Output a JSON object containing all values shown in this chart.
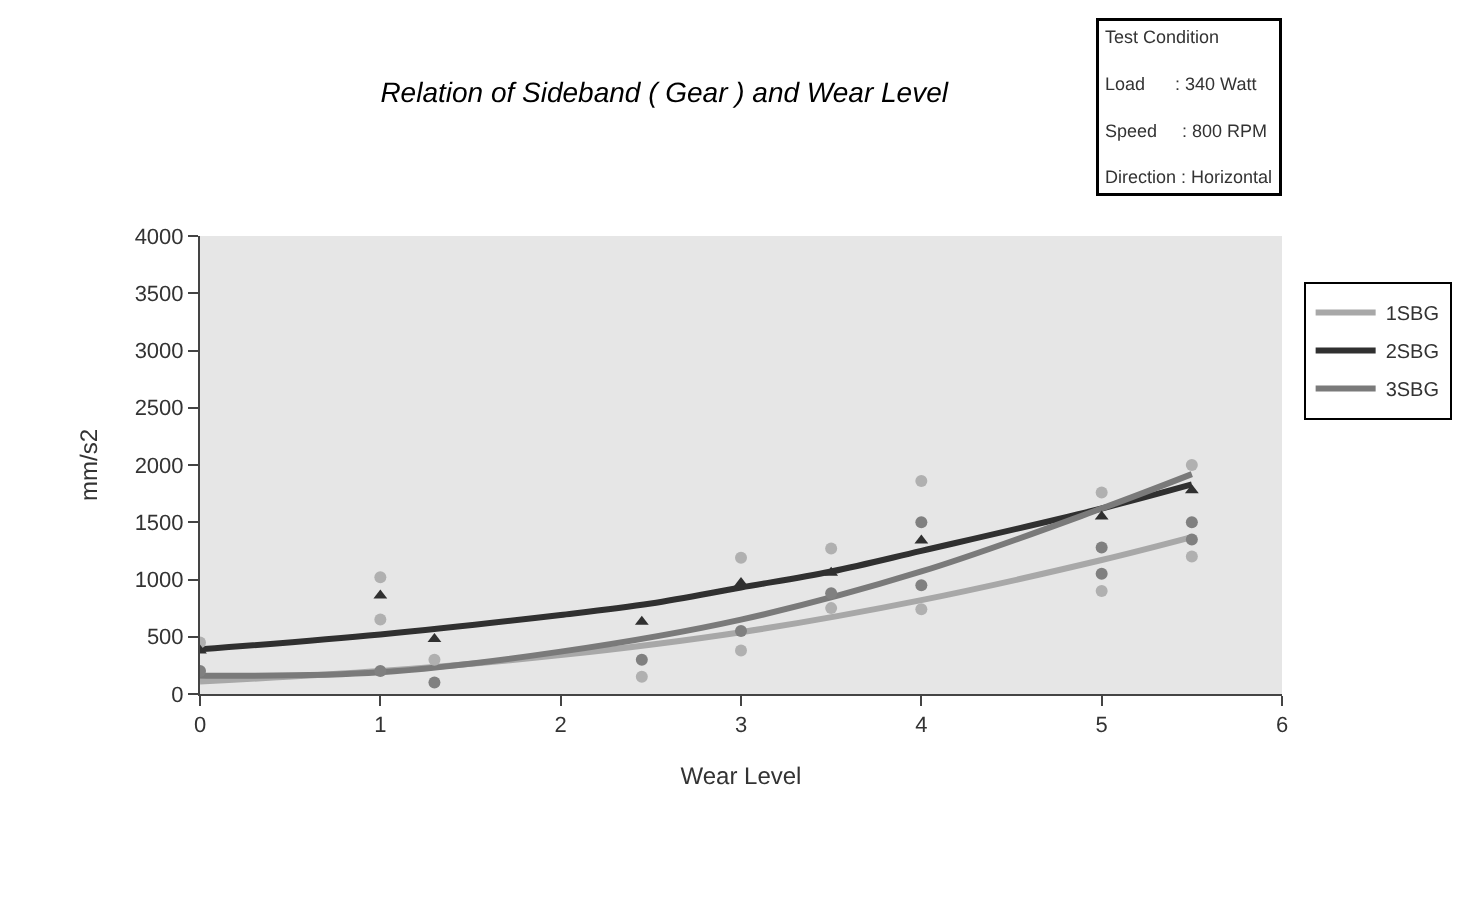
{
  "chart_data": {
    "type": "line",
    "title": "Relation of Sideband ( Gear ) and Wear Level",
    "xlabel": "Wear Level",
    "ylabel": "mm/s2",
    "annotations": [
      "Test Condition",
      "Load      : 340 Watt",
      "Speed     : 800 RPM",
      "Direction : Horizontal"
    ],
    "xlim": [
      0,
      6
    ],
    "xticks": [
      0,
      1,
      2,
      3,
      4,
      5,
      6
    ],
    "ylim": [
      0,
      4000
    ],
    "yticks": [
      0,
      500,
      1000,
      1500,
      2000,
      2500,
      3000,
      3500,
      4000
    ],
    "grid": false,
    "legend": "right",
    "series": [
      {
        "name": "1SBG",
        "color": "#a8a8a8",
        "marker": "none",
        "x": [
          0,
          1,
          2,
          3,
          4,
          5,
          5.5
        ],
        "values": [
          110,
          200,
          340,
          540,
          820,
          1170,
          1370
        ]
      },
      {
        "name": "2SBG",
        "color": "#303030",
        "marker": "none",
        "x": [
          0,
          1,
          2,
          2.5,
          3,
          3.5,
          4,
          5,
          5.5
        ],
        "values": [
          390,
          520,
          690,
          790,
          930,
          1070,
          1250,
          1620,
          1830
        ]
      },
      {
        "name": "3SBG",
        "color": "#7a7a7a",
        "marker": "none",
        "x": [
          0,
          1,
          2,
          3,
          4,
          5,
          5.5
        ],
        "values": [
          160,
          190,
          370,
          650,
          1070,
          1620,
          1920
        ]
      },
      {
        "color": "#b0b0b0",
        "type": "scatter",
        "marker": "circle",
        "x": [
          0,
          1,
          1,
          1.3,
          2.45,
          3,
          3,
          3.5,
          3.5,
          4,
          4,
          5,
          5,
          5.5,
          5.5
        ],
        "values": [
          450,
          1020,
          650,
          300,
          150,
          1190,
          380,
          1270,
          750,
          1860,
          740,
          1760,
          900,
          2000,
          1200
        ]
      },
      {
        "color": "#303030",
        "type": "scatter",
        "marker": "triangle",
        "x": [
          0,
          1,
          1.3,
          2.45,
          3,
          3.5,
          4,
          5,
          5.5
        ],
        "values": [
          380,
          860,
          480,
          630,
          970,
          1060,
          1340,
          1550,
          1780
        ]
      },
      {
        "color": "#808080",
        "type": "scatter",
        "marker": "circle",
        "x": [
          0,
          1,
          1.3,
          2.45,
          3,
          3.5,
          4,
          4,
          5,
          5,
          5.5,
          5.5
        ],
        "values": [
          200,
          200,
          100,
          300,
          550,
          880,
          1500,
          950,
          1280,
          1050,
          1500,
          1350
        ]
      }
    ]
  }
}
